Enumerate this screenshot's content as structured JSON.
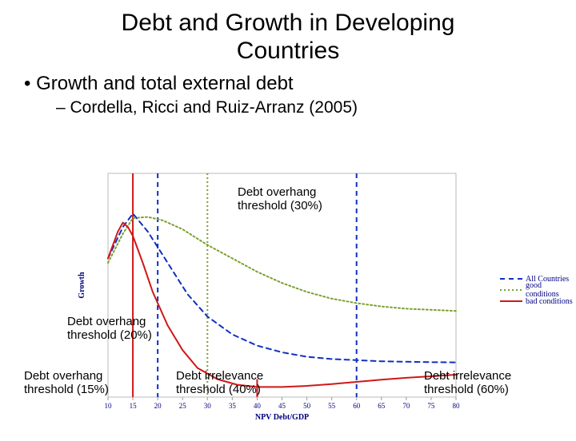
{
  "title_line1": "Debt and Growth in Developing",
  "title_line2": "Countries",
  "bullet1": "• Growth and total external debt",
  "bullet2": "– Cordella, Ricci and Ruiz-Arranz (2005)",
  "chart": {
    "type": "line",
    "background_color": "#ffffff",
    "plot_border_color": "#bbbbbb",
    "xlabel": "NPV Debt/GDP",
    "ylabel": "Growth",
    "xlabel_color": "#000080",
    "ylabel_color": "#000080",
    "axis_fontsize": 10,
    "tick_fontsize": 9,
    "tick_color": "#000080",
    "xlim": [
      10,
      80
    ],
    "ylim": [
      0,
      100
    ],
    "xticks": [
      10,
      15,
      20,
      25,
      30,
      35,
      40,
      45,
      50,
      55,
      60,
      65,
      70,
      75,
      80
    ],
    "series": [
      {
        "name": "All Countries",
        "color": "#1030c0",
        "dash": "6,5",
        "width": 2,
        "points": [
          [
            10,
            62
          ],
          [
            13,
            76
          ],
          [
            15,
            82
          ],
          [
            18,
            74
          ],
          [
            22,
            60
          ],
          [
            26,
            46
          ],
          [
            30,
            36
          ],
          [
            35,
            28
          ],
          [
            40,
            23
          ],
          [
            45,
            20
          ],
          [
            50,
            18
          ],
          [
            55,
            17
          ],
          [
            60,
            16.5
          ],
          [
            65,
            16
          ],
          [
            70,
            15.8
          ],
          [
            75,
            15.6
          ],
          [
            80,
            15.5
          ]
        ]
      },
      {
        "name": "good conditions",
        "color": "#7aa030",
        "dash": "2,3",
        "width": 2,
        "points": [
          [
            10,
            60
          ],
          [
            13,
            73
          ],
          [
            15,
            80
          ],
          [
            18,
            80.5
          ],
          [
            21,
            79
          ],
          [
            25,
            75
          ],
          [
            30,
            68
          ],
          [
            35,
            62
          ],
          [
            40,
            56
          ],
          [
            45,
            51
          ],
          [
            50,
            47
          ],
          [
            55,
            44
          ],
          [
            60,
            42
          ],
          [
            65,
            40.5
          ],
          [
            70,
            39.5
          ],
          [
            75,
            39
          ],
          [
            80,
            38.5
          ]
        ]
      },
      {
        "name": "bad conditions",
        "color": "#d01818",
        "dash": "",
        "width": 2,
        "points": [
          [
            10,
            62
          ],
          [
            12,
            74
          ],
          [
            13,
            78
          ],
          [
            14,
            76
          ],
          [
            15,
            72
          ],
          [
            17,
            60
          ],
          [
            19,
            47
          ],
          [
            22,
            32
          ],
          [
            25,
            21
          ],
          [
            28,
            13
          ],
          [
            32,
            8
          ],
          [
            36,
            5.5
          ],
          [
            40,
            4.5
          ],
          [
            45,
            4.5
          ],
          [
            50,
            5
          ],
          [
            55,
            5.8
          ],
          [
            60,
            6.8
          ],
          [
            65,
            7.8
          ],
          [
            70,
            8.6
          ],
          [
            75,
            9.3
          ],
          [
            80,
            10
          ]
        ]
      }
    ],
    "legend": {
      "items": [
        "All Countries",
        "good conditions",
        "bad conditions"
      ],
      "colors": [
        "#1030c0",
        "#7aa030",
        "#d01818"
      ],
      "dashes": [
        "6,5",
        "2,3",
        ""
      ]
    },
    "threshold_lines": [
      {
        "x": 15,
        "color": "#d01818",
        "dash": "",
        "width": 2,
        "y_from": 0,
        "y_to": 100
      },
      {
        "x": 20,
        "color": "#1030c0",
        "dash": "6,5",
        "width": 2,
        "y_from": 0,
        "y_to": 100
      },
      {
        "x": 30,
        "color": "#7aa030",
        "dash": "2,3",
        "width": 2,
        "y_from": 0,
        "y_to": 100
      },
      {
        "x": 40,
        "color": "#d01818",
        "dash": "",
        "width": 2,
        "y_from": 0,
        "y_to": 8
      },
      {
        "x": 60,
        "color": "#1030c0",
        "dash": "6,5",
        "width": 2,
        "y_from": 0,
        "y_to": 100
      }
    ]
  },
  "annotations": {
    "a_30": "Debt overhang\nthreshold (30%)",
    "a_20": "Debt overhang\nthreshold (20%)",
    "a_15": "Debt overhang\nthreshold (15%)",
    "a_40": "Debt irrelevance\nthreshold (40%)",
    "a_60": "Debt irrelevance\nthreshold (60%)"
  }
}
